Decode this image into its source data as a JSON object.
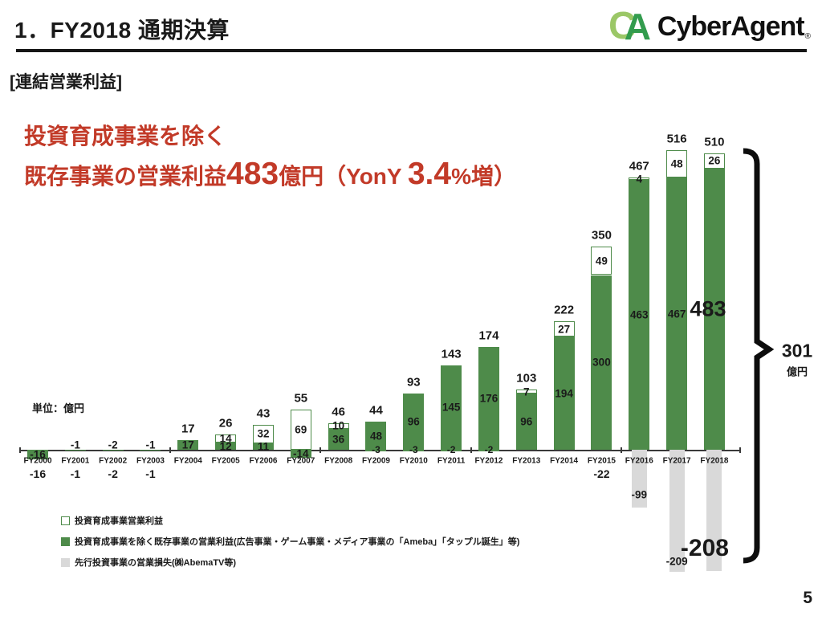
{
  "header": {
    "title": "1．FY2018 通期決算",
    "logo": {
      "c": "C",
      "a": "A",
      "wordmark": "CyberAgent",
      "reg": "®"
    }
  },
  "section_label": "[連結営業利益]",
  "highlight": {
    "line1": "投資育成事業を除く",
    "line2": {
      "prefix": "既存事業の営業利益",
      "big1": "483",
      "mid": "億円（YonY ",
      "big2": "3.4",
      "suffix": "%増）"
    }
  },
  "unit_note": "単位：億円",
  "bracket": {
    "value": "301",
    "unit": "億円"
  },
  "legend": {
    "items": [
      {
        "swatch": "invest",
        "label": "投資育成事業営業利益"
      },
      {
        "swatch": "existing",
        "label": "投資育成事業を除く既存事業の営業利益(広告事業・ゲーム事業・メディア事業の「Ameba」「タップル誕生」等)"
      },
      {
        "swatch": "lead",
        "label": "先行投資事業の営業損失(㈱AbemaTV等)"
      }
    ]
  },
  "page_number": "5",
  "colors": {
    "bar_green": "#4e8b4a",
    "bar_gray": "#d9d9d9",
    "accent_red": "#c23a28",
    "ink": "#1a1a1a",
    "logo_light_green": "#9bc767",
    "logo_dark_green": "#339c4e"
  },
  "chart_data": {
    "type": "bar",
    "stacked": true,
    "title": "連結営業利益",
    "unit": "億円",
    "categories": [
      "FY2000",
      "FY2001",
      "FY2002",
      "FY2003",
      "FY2004",
      "FY2005",
      "FY2006",
      "FY2007",
      "FY2008",
      "FY2009",
      "FY2010",
      "FY2011",
      "FY2012",
      "FY2013",
      "FY2014",
      "FY2015",
      "FY2016",
      "FY2017",
      "FY2018"
    ],
    "series": [
      {
        "name": "投資育成事業営業利益",
        "color_key": "invest",
        "values": [
          null,
          null,
          null,
          null,
          null,
          14,
          32,
          69,
          10,
          -3,
          -3,
          -2,
          -2,
          7,
          27,
          49,
          4,
          48,
          26
        ]
      },
      {
        "name": "投資育成事業を除く既存事業の営業利益(広告事業・ゲーム事業・メディア事業の「Ameba」「タップル誕生」等)",
        "color_key": "existing",
        "values": [
          -16,
          -1,
          -2,
          -1,
          17,
          12,
          11,
          -14,
          36,
          48,
          96,
          145,
          176,
          96,
          194,
          300,
          463,
          467,
          483
        ]
      },
      {
        "name": "先行投資事業の営業損失(㈱AbemaTV等)",
        "color_key": "lead",
        "values": [
          null,
          null,
          null,
          null,
          null,
          null,
          null,
          null,
          null,
          null,
          null,
          null,
          null,
          null,
          null,
          -22,
          -99,
          -209,
          -208
        ]
      }
    ],
    "totals": [
      -16,
      -1,
      -2,
      -1,
      17,
      26,
      43,
      55,
      46,
      44,
      93,
      143,
      174,
      103,
      222,
      350,
      467,
      516,
      510
    ],
    "annotations": {
      "fy2018_existing_emphasis": "483",
      "fy2018_lead_emphasis": "-208",
      "net_bracket": "301億円"
    },
    "layout": {
      "zero_axis": true,
      "grid": false,
      "legend_position": "bottom-left"
    }
  }
}
